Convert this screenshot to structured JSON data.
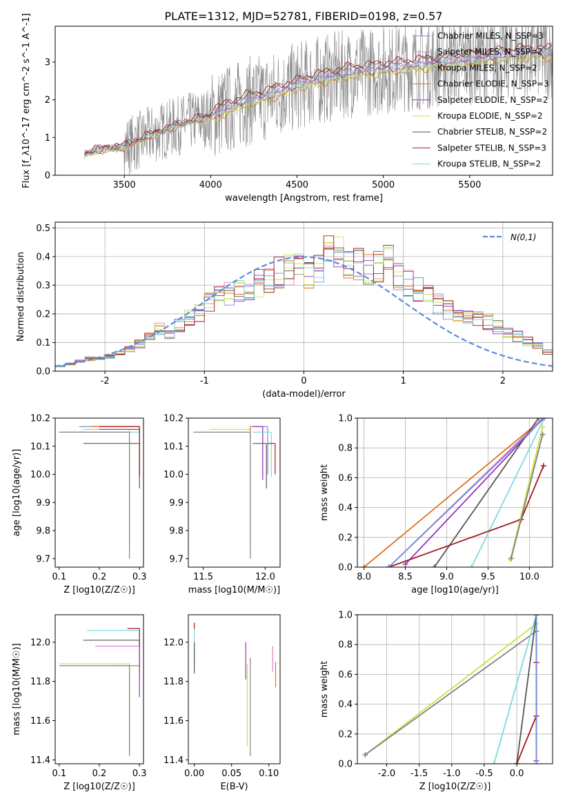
{
  "title": "PLATE=1312, MJD=52781, FIBERID=0198, z=0.57",
  "colors": {
    "chabrier_miles": "#6f8fd6",
    "salpeter_miles": "#e080c0",
    "kroupa_miles": "#d8e05a",
    "chabrier_elodie": "#e07020",
    "salpeter_elodie": "#9a30c0",
    "kroupa_elodie": "#c8e040",
    "chabrier_stelib": "#555555",
    "salpeter_stelib": "#a01818",
    "kroupa_stelib": "#80d8e0",
    "data": "#808080",
    "normal": "#5b8ad8"
  },
  "chart_data": [
    {
      "id": "spectrum",
      "type": "line",
      "xlabel": "wavelength [Angstrom, rest frame]",
      "ylabel": "Flux [f_λ10^-17 erg cm^-2 s^-1 A^-1]",
      "xlim": [
        3100,
        5980
      ],
      "ylim": [
        0,
        3.95
      ],
      "xticks": [
        3500,
        4000,
        4500,
        5000,
        5500
      ],
      "yticks": [
        0,
        1,
        2,
        3
      ],
      "legend_position": "upper-right",
      "data_start": 3270,
      "model_anchors": {
        "x": [
          3270,
          3300,
          3400,
          3500,
          3600,
          3700,
          3800,
          3900,
          4000,
          4100,
          4200,
          4300,
          4400,
          4500,
          4600,
          4700,
          4800,
          4900,
          5000,
          5100,
          5200,
          5300,
          5400,
          5500,
          5600,
          5700,
          5800
        ],
        "y": [
          0.55,
          0.6,
          0.72,
          0.75,
          0.95,
          1.15,
          1.3,
          1.45,
          1.55,
          1.75,
          1.95,
          2.05,
          2.2,
          2.35,
          2.5,
          2.6,
          2.7,
          2.75,
          2.8,
          2.85,
          2.9,
          2.95,
          3.0,
          3.05,
          3.1,
          3.15,
          3.2
        ]
      },
      "series": [
        {
          "name": "Chabrier MILES, N_SSP=3",
          "color_key": "chabrier_miles",
          "offset": 0.02
        },
        {
          "name": "Salpeter MILES, N_SSP=2",
          "color_key": "salpeter_miles",
          "offset": 0.05
        },
        {
          "name": "Kroupa MILES, N_SSP=2",
          "color_key": "kroupa_miles",
          "offset": -0.05
        },
        {
          "name": "Chabrier ELODIE, N_SSP=3",
          "color_key": "chabrier_elodie",
          "offset": -0.1
        },
        {
          "name": "Salpeter ELODIE, N_SSP=2",
          "color_key": "salpeter_elodie",
          "offset": 0.0
        },
        {
          "name": "Kroupa ELODIE, N_SSP=2",
          "color_key": "kroupa_elodie",
          "offset": -0.08
        },
        {
          "name": "Chabrier STELIB, N_SSP=2",
          "color_key": "chabrier_stelib",
          "offset": 0.15
        },
        {
          "name": "Salpeter STELIB, N_SSP=3",
          "color_key": "salpeter_stelib",
          "offset": 0.2
        },
        {
          "name": "Kroupa STELIB, N_SSP=2",
          "color_key": "kroupa_stelib",
          "offset": -0.02
        }
      ]
    },
    {
      "id": "residuals",
      "type": "histogram",
      "xlabel": "(data-model)/error",
      "ylabel": "Normed distribution",
      "xlim": [
        -2.5,
        2.5
      ],
      "ylim": [
        0,
        0.52
      ],
      "xticks": [
        -2,
        -1,
        0,
        1,
        2
      ],
      "yticks": [
        0.0,
        0.1,
        0.2,
        0.3,
        0.4,
        0.5
      ],
      "legend_position": "upper-right",
      "normal_label": "N(0,1)",
      "bin_width": 0.1,
      "hist_max": [
        0.02,
        0.03,
        0.04,
        0.05,
        0.05,
        0.06,
        0.07,
        0.09,
        0.11,
        0.14,
        0.17,
        0.15,
        0.19,
        0.22,
        0.24,
        0.28,
        0.3,
        0.31,
        0.32,
        0.32,
        0.36,
        0.38,
        0.4,
        0.41,
        0.42,
        0.4,
        0.43,
        0.5,
        0.47,
        0.45,
        0.44,
        0.41,
        0.42,
        0.45,
        0.38,
        0.36,
        0.33,
        0.3,
        0.27,
        0.25,
        0.23,
        0.22,
        0.21,
        0.2,
        0.18,
        0.16,
        0.14,
        0.12,
        0.1,
        0.08
      ],
      "grid": true
    },
    {
      "id": "age-vs-Z",
      "type": "scatter",
      "xlabel": "Z [log10(Z/Z☉)]",
      "ylabel": "age [log10(age/yr)]",
      "xlim": [
        0.09,
        0.31
      ],
      "ylim": [
        9.67,
        10.2
      ],
      "xticks": [
        0.1,
        0.2,
        0.3
      ],
      "yticks": [
        9.7,
        9.8,
        9.9,
        10.0,
        10.1,
        10.2
      ],
      "points": [
        {
          "color_key": "chabrier_miles",
          "x": 0.3,
          "y": 10.17,
          "xlo": 0.15,
          "ylo": 9.99
        },
        {
          "color_key": "salpeter_miles",
          "x": 0.3,
          "y": 10.16,
          "xlo": 0.16,
          "ylo": 10.0
        },
        {
          "color_key": "kroupa_elodie",
          "x": 0.275,
          "y": 10.16,
          "xlo": 0.16,
          "ylo": 9.74
        },
        {
          "color_key": "chabrier_elodie",
          "x": 0.3,
          "y": 10.17,
          "xlo": 0.18,
          "ylo": 10.0
        },
        {
          "color_key": "salpeter_elodie",
          "x": 0.3,
          "y": 10.16,
          "xlo": 0.2,
          "ylo": 9.99
        },
        {
          "color_key": "kroupa_stelib",
          "x": 0.3,
          "y": 10.15,
          "xlo": 0.1,
          "ylo": 10.0
        },
        {
          "color_key": "chabrier_stelib",
          "x": 0.3,
          "y": 10.11,
          "xlo": 0.16,
          "ylo": 9.95
        },
        {
          "color_key": "salpeter_stelib",
          "x": 0.3,
          "y": 10.17,
          "xlo": 0.2,
          "ylo": 10.0
        },
        {
          "color_key": "data",
          "x": 0.275,
          "y": 10.15,
          "xlo": 0.1,
          "ylo": 9.7
        }
      ]
    },
    {
      "id": "age-vs-mass",
      "type": "scatter",
      "xlabel": "mass [log10(M/M☉)]",
      "ylabel": "",
      "xlim": [
        11.38,
        12.12
      ],
      "ylim": [
        9.67,
        10.2
      ],
      "xticks": [
        11.5,
        12.0
      ],
      "yticks": [
        9.7,
        9.8,
        9.9,
        10.0,
        10.1,
        10.2
      ],
      "points": [
        {
          "color_key": "chabrier_miles",
          "x": 12.02,
          "y": 10.17,
          "xlo": 11.88,
          "ylo": 10.0
        },
        {
          "color_key": "salpeter_miles",
          "x": 11.98,
          "y": 10.17,
          "xlo": 11.88,
          "ylo": 10.0
        },
        {
          "color_key": "kroupa_elodie",
          "x": 11.88,
          "y": 10.16,
          "xlo": 11.55,
          "ylo": 9.75
        },
        {
          "color_key": "chabrier_elodie",
          "x": 11.88,
          "y": 10.17,
          "xlo": 11.88,
          "ylo": 10.13
        },
        {
          "color_key": "salpeter_elodie",
          "x": 11.98,
          "y": 10.17,
          "xlo": 11.9,
          "ylo": 9.98
        },
        {
          "color_key": "kroupa_stelib",
          "x": 12.05,
          "y": 10.15,
          "xlo": 11.9,
          "ylo": 9.99
        },
        {
          "color_key": "chabrier_stelib",
          "x": 12.01,
          "y": 10.11,
          "xlo": 11.9,
          "ylo": 9.95
        },
        {
          "color_key": "salpeter_stelib",
          "x": 12.08,
          "y": 10.11,
          "xlo": 12.02,
          "ylo": 10.0
        },
        {
          "color_key": "data",
          "x": 11.88,
          "y": 10.15,
          "xlo": 11.42,
          "ylo": 9.7
        }
      ]
    },
    {
      "id": "weight-vs-age",
      "type": "line",
      "xlabel": "age [log10(age/yr)]",
      "ylabel": "mass weight",
      "xlim": [
        7.92,
        10.28
      ],
      "ylim": [
        0,
        1
      ],
      "xticks": [
        8.0,
        8.5,
        9.0,
        9.5,
        10.0
      ],
      "yticks": [
        0.0,
        0.2,
        0.4,
        0.6,
        0.8,
        1.0
      ],
      "grid": true,
      "series": [
        {
          "color_key": "chabrier_elodie",
          "x": [
            8.0,
            10.17
          ],
          "y": [
            0.0,
            1.0
          ]
        },
        {
          "color_key": "salpeter_miles",
          "x": [
            8.3,
            10.16
          ],
          "y": [
            0.0,
            1.0
          ]
        },
        {
          "color_key": "salpeter_elodie",
          "x": [
            8.5,
            10.17
          ],
          "y": [
            0.02,
            1.0
          ]
        },
        {
          "color_key": "chabrier_stelib",
          "x": [
            8.85,
            10.11
          ],
          "y": [
            0.0,
            1.0
          ]
        },
        {
          "color_key": "kroupa_stelib",
          "x": [
            9.3,
            10.18
          ],
          "y": [
            0.0,
            1.0
          ]
        },
        {
          "color_key": "salpeter_stelib",
          "x": [
            8.3,
            9.9,
            10.17
          ],
          "y": [
            0.0,
            0.32,
            0.68
          ]
        },
        {
          "color_key": "kroupa_elodie",
          "x": [
            9.77,
            10.16
          ],
          "y": [
            0.05,
            0.94
          ]
        },
        {
          "color_key": "data",
          "x": [
            9.78,
            10.16
          ],
          "y": [
            0.06,
            0.89
          ]
        },
        {
          "color_key": "chabrier_miles",
          "x": [
            8.3,
            10.18
          ],
          "y": [
            0.0,
            1.0
          ]
        }
      ]
    },
    {
      "id": "mass-vs-Z",
      "type": "scatter",
      "xlabel": "Z [log10(Z/Z☉)]",
      "ylabel": "mass [log10(M/M☉)]",
      "xlim": [
        0.09,
        0.31
      ],
      "ylim": [
        11.38,
        12.14
      ],
      "xticks": [
        0.1,
        0.2,
        0.3
      ],
      "yticks": [
        11.4,
        11.6,
        11.8,
        12.0
      ],
      "points": [
        {
          "color_key": "kroupa_stelib",
          "x": 0.3,
          "y": 12.06,
          "xlo": 0.17,
          "ylo": 11.9
        },
        {
          "color_key": "chabrier_stelib",
          "x": 0.3,
          "y": 12.01,
          "xlo": 0.16,
          "ylo": 11.86
        },
        {
          "color_key": "salpeter_stelib",
          "x": 0.3,
          "y": 12.07,
          "xlo": 0.27,
          "ylo": 11.95
        },
        {
          "color_key": "salpeter_miles",
          "x": 0.3,
          "y": 11.98,
          "xlo": 0.19,
          "ylo": 11.85
        },
        {
          "color_key": "kroupa_elodie",
          "x": 0.275,
          "y": 11.89,
          "xlo": 0.1,
          "ylo": 11.45
        },
        {
          "color_key": "chabrier_elodie",
          "x": 0.3,
          "y": 11.88,
          "xlo": 0.24,
          "ylo": 11.84
        },
        {
          "color_key": "salpeter_elodie",
          "x": 0.3,
          "y": 11.98,
          "xlo": 0.3,
          "ylo": 11.72
        },
        {
          "color_key": "data",
          "x": 0.275,
          "y": 11.88,
          "xlo": 0.1,
          "ylo": 11.42
        }
      ]
    },
    {
      "id": "mass-vs-ebv",
      "type": "scatter",
      "xlabel": "E(B-V)",
      "ylabel": "",
      "xlim": [
        -0.008,
        0.115
      ],
      "ylim": [
        11.38,
        12.14
      ],
      "xticks": [
        0.0,
        0.05,
        0.1
      ],
      "yticks": [
        11.4,
        11.6,
        11.8,
        12.0
      ],
      "points": [
        {
          "color_key": "salpeter_stelib",
          "x": 0.0,
          "y": 12.1,
          "ylo": 12.06
        },
        {
          "color_key": "kroupa_stelib",
          "x": 0.0,
          "y": 12.07,
          "ylo": 11.87
        },
        {
          "color_key": "chabrier_stelib",
          "x": 0.0,
          "y": 12.0,
          "ylo": 11.84
        },
        {
          "color_key": "salpeter_elodie",
          "x": 0.069,
          "y": 12.0,
          "ylo": 11.81
        },
        {
          "color_key": "kroupa_elodie",
          "x": 0.071,
          "y": 11.89,
          "ylo": 11.47
        },
        {
          "color_key": "data",
          "x": 0.075,
          "y": 11.92,
          "ylo": 11.42
        },
        {
          "color_key": "salpeter_miles",
          "x": 0.105,
          "y": 11.98,
          "ylo": 11.85
        },
        {
          "color_key": "chabrier_elodie",
          "x": 0.109,
          "y": 11.9,
          "ylo": 11.77
        }
      ]
    },
    {
      "id": "weight-vs-Z",
      "type": "line",
      "xlabel": "Z [log10(Z/Z☉)]",
      "ylabel": "mass weight",
      "xlim": [
        -2.45,
        0.55
      ],
      "ylim": [
        0,
        1
      ],
      "xticks": [
        -2.0,
        -1.5,
        -1.0,
        -0.5,
        0.0
      ],
      "yticks": [
        0.0,
        0.2,
        0.4,
        0.6,
        0.8,
        1.0
      ],
      "grid": true,
      "series": [
        {
          "color_key": "kroupa_elodie",
          "x": [
            -2.33,
            0.3
          ],
          "y": [
            0.06,
            0.94
          ]
        },
        {
          "color_key": "data",
          "x": [
            -2.33,
            0.3
          ],
          "y": [
            0.06,
            0.89
          ]
        },
        {
          "color_key": "kroupa_stelib",
          "x": [
            -0.35,
            0.3
          ],
          "y": [
            0.0,
            1.0
          ]
        },
        {
          "color_key": "chabrier_stelib",
          "x": [
            0.0,
            0.3
          ],
          "y": [
            0.0,
            1.0
          ]
        },
        {
          "color_key": "salpeter_stelib",
          "x": [
            0.0,
            0.3,
            0.3
          ],
          "y": [
            0.0,
            0.32,
            0.68
          ]
        },
        {
          "color_key": "salpeter_elodie",
          "x": [
            0.3,
            0.3
          ],
          "y": [
            0.02,
            1.0
          ]
        },
        {
          "color_key": "chabrier_miles",
          "x": [
            0.3,
            0.3
          ],
          "y": [
            0.0,
            1.0
          ]
        }
      ]
    }
  ]
}
